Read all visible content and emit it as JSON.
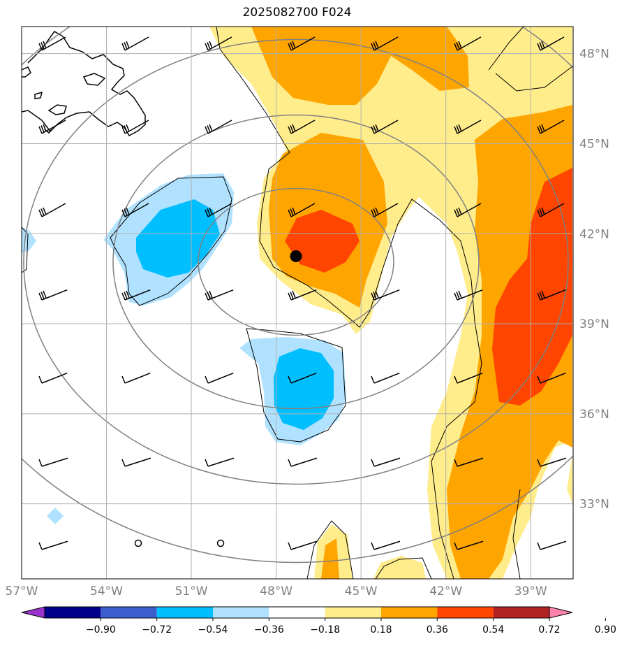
{
  "title": "2025082700 F024",
  "map": {
    "lon_range": [
      -57,
      -37.5
    ],
    "lat_range": [
      30.5,
      48.9
    ],
    "longitude_labels": [
      "57°W",
      "54°W",
      "51°W",
      "48°W",
      "45°W",
      "42°W",
      "39°W"
    ],
    "longitude_values": [
      -57,
      -54,
      -51,
      -48,
      -45,
      -42,
      -39
    ],
    "latitude_labels": [
      "48°N",
      "45°N",
      "42°N",
      "39°N",
      "36°N",
      "33°N"
    ],
    "latitude_values": [
      48,
      45,
      42,
      39,
      36,
      33
    ],
    "center_marker": {
      "lon": -47.3,
      "lat": 41.25
    },
    "grid": true
  },
  "colorbar": {
    "tick_labels": [
      "−0.90",
      "−0.72",
      "−0.54",
      "−0.36",
      "−0.18",
      "0.18",
      "0.36",
      "0.54",
      "0.72",
      "0.90"
    ],
    "tick_values": [
      -0.9,
      -0.72,
      -0.54,
      -0.36,
      -0.18,
      0.18,
      0.36,
      0.54,
      0.72,
      0.9
    ],
    "colors": [
      "#9932cc",
      "#00008b",
      "#3a5fcd",
      "#00bfff",
      "#b0e2ff",
      "#ffffff",
      "#ffec8b",
      "#ffa500",
      "#ff4500",
      "#b22222",
      "#ff82ab"
    ],
    "extend": "both"
  }
}
